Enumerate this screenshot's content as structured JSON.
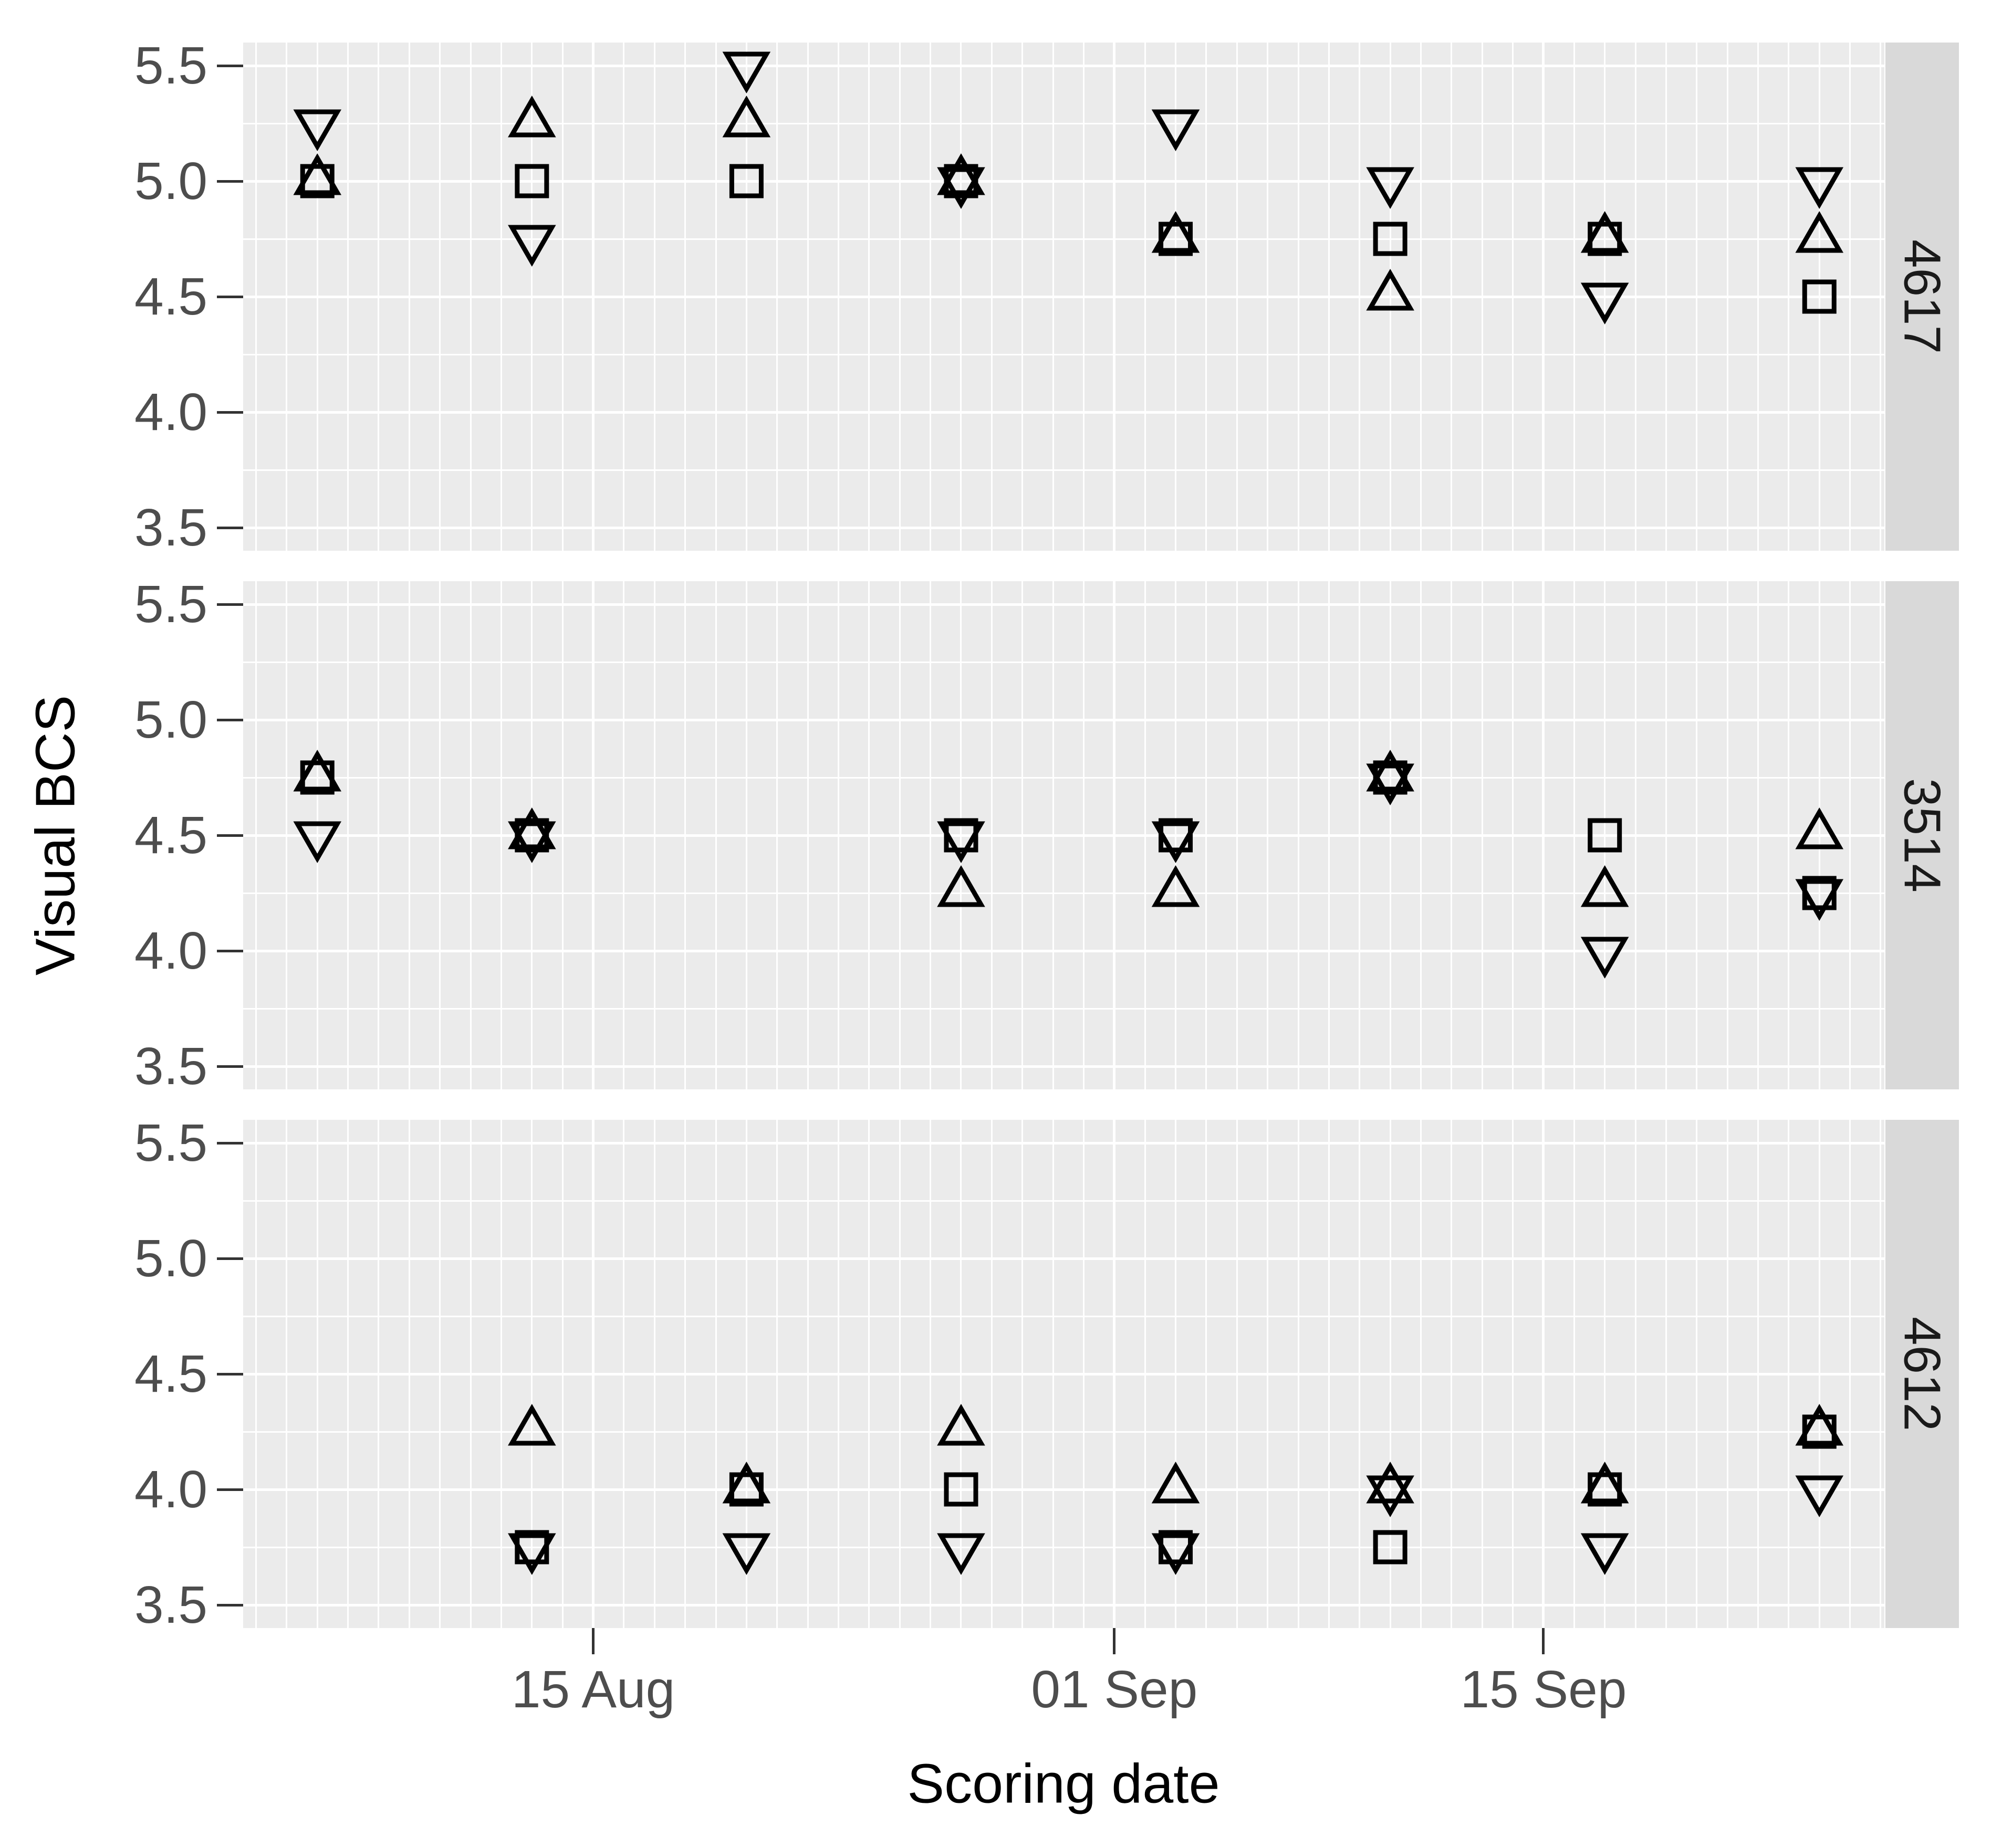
{
  "style": {
    "panel_background": "#EBEBEB",
    "strip_background": "#D9D9D9",
    "gridline_color": "#FFFFFF",
    "marker_color": "#000000",
    "tick_mark_color": "#333333",
    "tick_label_color": "#4D4D4D",
    "axis_title_color": "#000000",
    "strip_text_color": "#1A1A1A",
    "figure_background": "#FFFFFF"
  },
  "chart_data": {
    "type": "scatter",
    "title": "",
    "xlabel": "Scoring date",
    "ylabel": "Visual BCS",
    "facet_side": "right",
    "grid": "on",
    "legend": "none",
    "marker_shapes": [
      "square",
      "triangle-up",
      "triangle-down"
    ],
    "y_ticks": [
      5.5,
      5.0,
      4.5,
      4.0,
      3.5
    ],
    "y_minor_step": 0.25,
    "y_domain": [
      3.4,
      5.6
    ],
    "x_domain_days_from_aug1": [
      2.58,
      56.12
    ],
    "x_ticks": [
      {
        "day": 14,
        "label": "15 Aug"
      },
      {
        "day": 31,
        "label": "01 Sep"
      },
      {
        "day": 45,
        "label": "15 Sep"
      }
    ],
    "x_minor_gridline_interval_days": 1,
    "scoring_days": [
      {
        "day": 5,
        "label": "06 Aug"
      },
      {
        "day": 12,
        "label": "13 Aug"
      },
      {
        "day": 19,
        "label": "20 Aug"
      },
      {
        "day": 26,
        "label": "27 Aug"
      },
      {
        "day": 33,
        "label": "03 Sep"
      },
      {
        "day": 40,
        "label": "10 Sep"
      },
      {
        "day": 47,
        "label": "17 Sep"
      },
      {
        "day": 54,
        "label": "24 Sep"
      }
    ],
    "facets": [
      {
        "label": "4617",
        "series": [
          {
            "shape": "square",
            "points": [
              [
                5,
                5.0
              ],
              [
                12,
                5.0
              ],
              [
                19,
                5.0
              ],
              [
                26,
                5.0
              ],
              [
                33,
                4.75
              ],
              [
                40,
                4.75
              ],
              [
                47,
                4.75
              ],
              [
                54,
                4.5
              ]
            ]
          },
          {
            "shape": "triangle-up",
            "points": [
              [
                5,
                5.0
              ],
              [
                12,
                5.25
              ],
              [
                19,
                5.25
              ],
              [
                26,
                5.0
              ],
              [
                33,
                4.75
              ],
              [
                40,
                4.5
              ],
              [
                47,
                4.75
              ],
              [
                54,
                4.75
              ]
            ]
          },
          {
            "shape": "triangle-down",
            "points": [
              [
                5,
                5.25
              ],
              [
                12,
                4.75
              ],
              [
                19,
                5.5
              ],
              [
                26,
                5.0
              ],
              [
                33,
                5.25
              ],
              [
                40,
                5.0
              ],
              [
                47,
                4.5
              ],
              [
                54,
                5.0
              ]
            ]
          }
        ]
      },
      {
        "label": "3514",
        "series": [
          {
            "shape": "square",
            "points": [
              [
                5,
                4.75
              ],
              [
                12,
                4.5
              ],
              [
                26,
                4.5
              ],
              [
                33,
                4.5
              ],
              [
                40,
                4.75
              ],
              [
                47,
                4.5
              ],
              [
                54,
                4.25
              ]
            ]
          },
          {
            "shape": "triangle-up",
            "points": [
              [
                5,
                4.75
              ],
              [
                12,
                4.5
              ],
              [
                26,
                4.25
              ],
              [
                33,
                4.25
              ],
              [
                40,
                4.75
              ],
              [
                47,
                4.25
              ],
              [
                54,
                4.5
              ]
            ]
          },
          {
            "shape": "triangle-down",
            "points": [
              [
                5,
                4.5
              ],
              [
                12,
                4.5
              ],
              [
                26,
                4.5
              ],
              [
                33,
                4.5
              ],
              [
                40,
                4.75
              ],
              [
                47,
                4.0
              ],
              [
                54,
                4.25
              ]
            ]
          }
        ]
      },
      {
        "label": "4612",
        "series": [
          {
            "shape": "square",
            "points": [
              [
                12,
                3.75
              ],
              [
                19,
                4.0
              ],
              [
                26,
                4.0
              ],
              [
                33,
                3.75
              ],
              [
                40,
                3.75
              ],
              [
                47,
                4.0
              ],
              [
                54,
                4.25
              ]
            ]
          },
          {
            "shape": "triangle-up",
            "points": [
              [
                12,
                4.25
              ],
              [
                19,
                4.0
              ],
              [
                26,
                4.25
              ],
              [
                33,
                4.0
              ],
              [
                40,
                4.0
              ],
              [
                47,
                4.0
              ],
              [
                54,
                4.25
              ]
            ]
          },
          {
            "shape": "triangle-down",
            "points": [
              [
                12,
                3.75
              ],
              [
                19,
                3.75
              ],
              [
                26,
                3.75
              ],
              [
                33,
                3.75
              ],
              [
                40,
                4.0
              ],
              [
                47,
                3.75
              ],
              [
                54,
                4.0
              ]
            ]
          }
        ]
      }
    ]
  }
}
